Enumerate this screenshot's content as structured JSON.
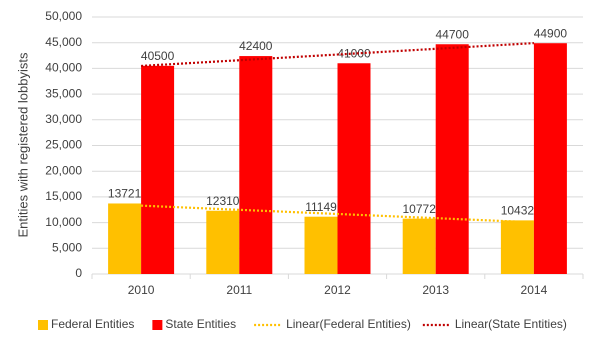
{
  "chart_data": {
    "type": "bar",
    "y_label": "Entities with registered lobbyists",
    "categories": [
      "2010",
      "2011",
      "2012",
      "2013",
      "2014"
    ],
    "series": [
      {
        "name": "Federal Entities",
        "color": "#FFC000",
        "values": [
          13721,
          12310,
          11149,
          10772,
          10432
        ],
        "trendline": {
          "name": "Linear(Federal Entities)",
          "color": "#FFC000"
        }
      },
      {
        "name": "State Entities",
        "color": "#FF0000",
        "values": [
          40500,
          42400,
          41000,
          44700,
          44900
        ],
        "trendline": {
          "name": "Linear(State Entities)",
          "color": "#C00000"
        }
      }
    ],
    "ylim": [
      0,
      50000
    ],
    "yticks": [
      0,
      {
        "value": 5000,
        "label": "5,000"
      },
      {
        "value": 10000,
        "label": "10,000"
      },
      {
        "value": 15000,
        "label": "15,000"
      },
      {
        "value": 20000,
        "label": "20,000"
      },
      {
        "value": 25000,
        "label": "25,000"
      },
      {
        "value": 30000,
        "label": "30,000"
      },
      {
        "value": 35000,
        "label": "35,000"
      },
      {
        "value": 40000,
        "label": "40,000"
      },
      {
        "value": 45000,
        "label": "45,000"
      },
      {
        "value": 50000,
        "label": "50,000"
      }
    ],
    "grid": true,
    "legend": "bottom"
  }
}
